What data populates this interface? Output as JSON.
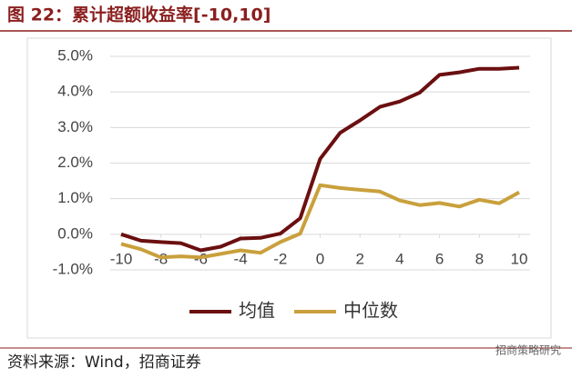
{
  "chart_data": {
    "type": "line",
    "title": "图 22：累计超额收益率[-10,10]",
    "x": [
      -10,
      -9,
      -8,
      -7,
      -6,
      -5,
      -4,
      -3,
      -2,
      -1,
      0,
      1,
      2,
      3,
      4,
      5,
      6,
      7,
      8,
      9,
      10
    ],
    "series": [
      {
        "name": "均值",
        "color": "#6b0f10",
        "values": [
          0.0,
          -0.18,
          -0.22,
          -0.25,
          -0.45,
          -0.35,
          -0.12,
          -0.1,
          0.02,
          0.45,
          2.12,
          2.85,
          3.2,
          3.58,
          3.73,
          3.98,
          4.48,
          4.55,
          4.65,
          4.65,
          4.68
        ]
      },
      {
        "name": "中位数",
        "color": "#c9a03c",
        "values": [
          -0.27,
          -0.42,
          -0.65,
          -0.62,
          -0.65,
          -0.55,
          -0.45,
          -0.52,
          -0.22,
          0.02,
          1.38,
          1.3,
          1.25,
          1.2,
          0.95,
          0.82,
          0.88,
          0.78,
          0.97,
          0.87,
          1.18
        ]
      }
    ],
    "xlim": [
      -10,
      10
    ],
    "xticks": [
      -10,
      -8,
      -6,
      -4,
      -2,
      0,
      2,
      4,
      6,
      8,
      10
    ],
    "ylim": [
      -1,
      5
    ],
    "yticks": [
      {
        "value": -1,
        "label": "-1.0%"
      },
      {
        "value": 0,
        "label": "0.0%"
      },
      {
        "value": 1,
        "label": "1.0%"
      },
      {
        "value": 2,
        "label": "2.0%"
      },
      {
        "value": 3,
        "label": "3.0%"
      },
      {
        "value": 4,
        "label": "4.0%"
      },
      {
        "value": 5,
        "label": "5.0%"
      }
    ],
    "grid": true,
    "legend": "bottom",
    "source": "资料来源：Wind，招商证券",
    "watermark": "招商策略研究"
  }
}
